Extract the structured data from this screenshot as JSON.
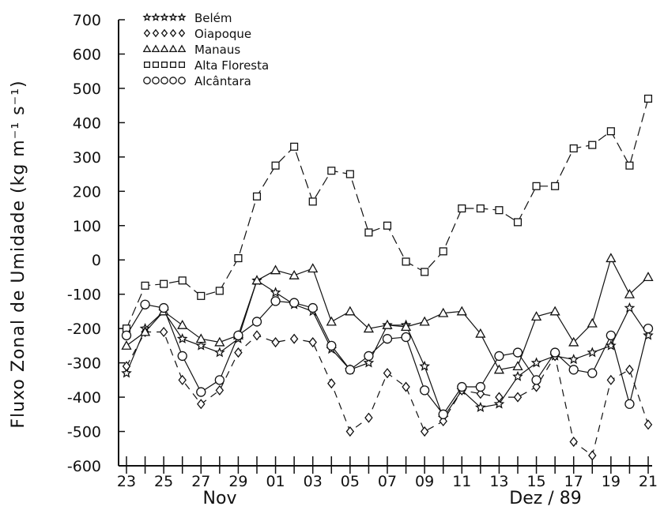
{
  "chart_data": {
    "type": "line",
    "title": "",
    "ylabel": "Fluxo Zonal de Umidade (kg m⁻¹ s⁻¹)",
    "xlabel": "",
    "ylim": [
      -600,
      700
    ],
    "yticks": [
      700,
      600,
      500,
      400,
      300,
      200,
      100,
      0,
      -100,
      -200,
      -300,
      -400,
      -500,
      -600
    ],
    "x": [
      23,
      24,
      25,
      26,
      27,
      28,
      29,
      30,
      1,
      2,
      3,
      4,
      5,
      6,
      7,
      8,
      9,
      10,
      11,
      12,
      13,
      14,
      15,
      16,
      17,
      18,
      19,
      20,
      21
    ],
    "xtick_labels": [
      "23",
      "25",
      "27",
      "29",
      "01",
      "03",
      "05",
      "07",
      "09",
      "11",
      "13",
      "15",
      "17",
      "19",
      "21"
    ],
    "month_labels": [
      "Nov",
      "Dez / 89"
    ],
    "legend_position": "top-left",
    "series": [
      {
        "name": "Belém",
        "marker": "star",
        "values": [
          -330,
          -200,
          -150,
          -230,
          -250,
          -270,
          -230,
          -60,
          -95,
          -130,
          -150,
          -260,
          -320,
          -300,
          -190,
          -190,
          -310,
          -460,
          -380,
          -430,
          -420,
          -340,
          -300,
          -280,
          -290,
          -270,
          -250,
          -140,
          -220
        ]
      },
      {
        "name": "Oiapoque",
        "marker": "diamond",
        "values": [
          -310,
          -210,
          -210,
          -350,
          -420,
          -380,
          -270,
          -220,
          -240,
          -230,
          -240,
          -360,
          -500,
          -460,
          -330,
          -370,
          -500,
          -470,
          -380,
          -390,
          -400,
          -400,
          -370,
          -280,
          -530,
          -570,
          -350,
          -320,
          -480
        ]
      },
      {
        "name": "Manaus",
        "marker": "triangle",
        "values": [
          -250,
          -210,
          -150,
          -190,
          -230,
          -240,
          -220,
          -60,
          -30,
          -45,
          -25,
          -180,
          -150,
          -200,
          -190,
          -195,
          -180,
          -155,
          -150,
          -215,
          -320,
          -310,
          -165,
          -150,
          -240,
          -185,
          5,
          -100,
          -50
        ]
      },
      {
        "name": "Alta Floresta",
        "marker": "square",
        "values": [
          -200,
          -75,
          -70,
          -60,
          -105,
          -90,
          5,
          185,
          275,
          330,
          170,
          260,
          250,
          80,
          100,
          -5,
          -35,
          25,
          150,
          150,
          145,
          110,
          215,
          215,
          325,
          335,
          375,
          275,
          470
        ]
      },
      {
        "name": "Alcântara",
        "marker": "circle",
        "values": [
          -220,
          -130,
          -140,
          -280,
          -385,
          -350,
          -220,
          -180,
          -120,
          -125,
          -140,
          -250,
          -320,
          -280,
          -230,
          -225,
          -380,
          -450,
          -370,
          -370,
          -280,
          -270,
          -350,
          -270,
          -320,
          -330,
          -220,
          -420,
          -200
        ]
      }
    ]
  }
}
